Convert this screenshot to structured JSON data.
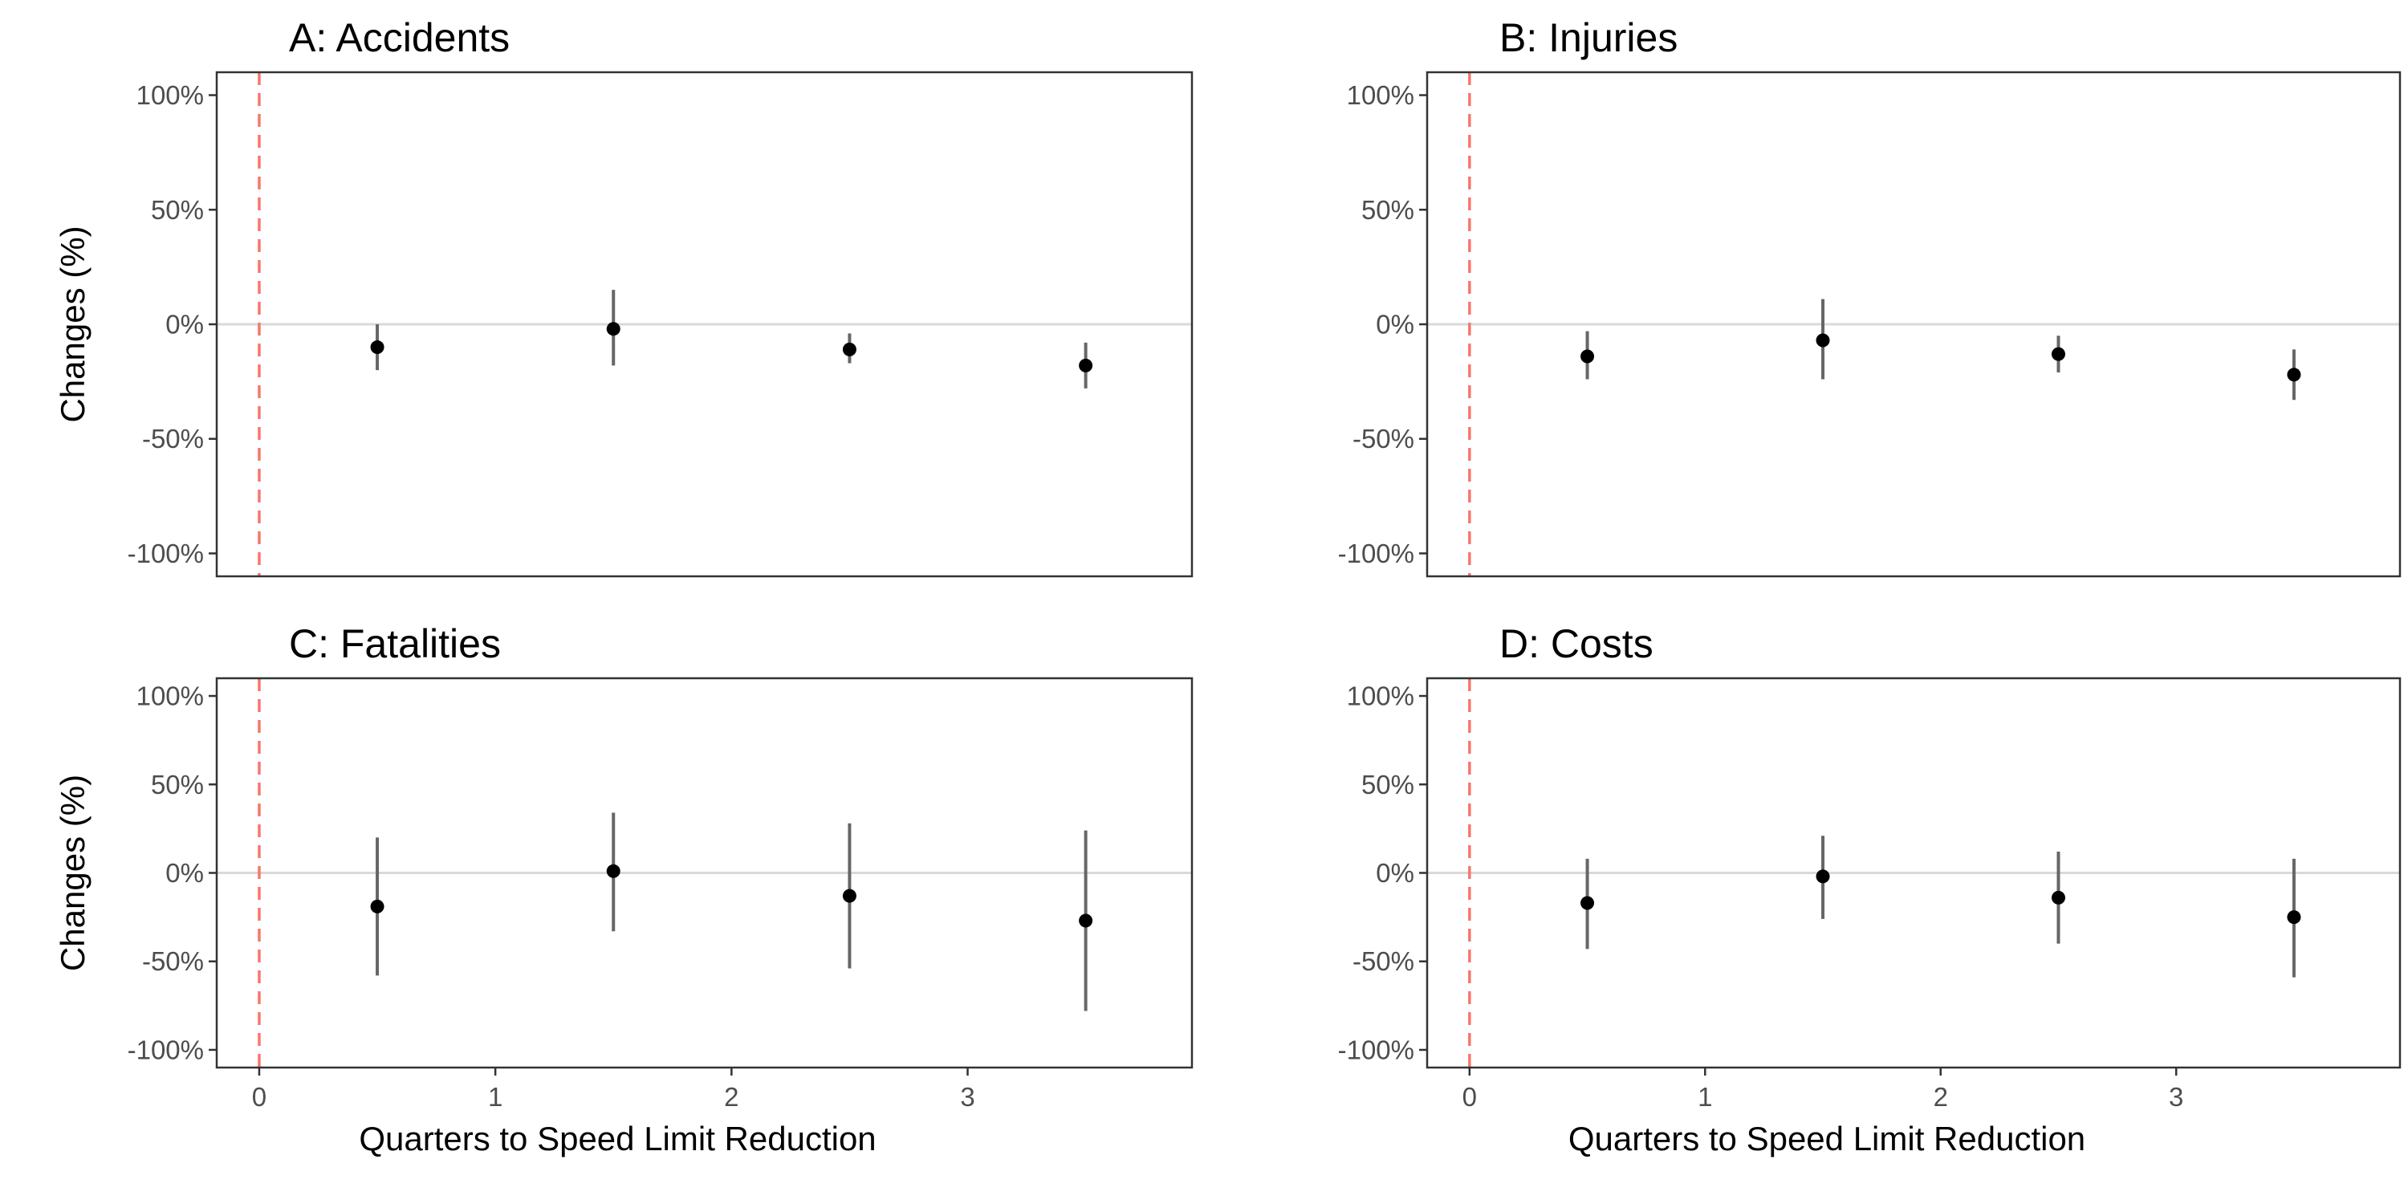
{
  "figure": {
    "shared_xlabel": "Quarters to Speed Limit Reduction",
    "shared_ylabel": "Changes (%)"
  },
  "chart_data": [
    {
      "type": "scatter",
      "title": "A: Accidents",
      "xlabel": "",
      "ylabel": "Changes (%)",
      "x": [
        0.5,
        1.5,
        2.5,
        3.5
      ],
      "y": [
        -10,
        -2,
        -11,
        -18
      ],
      "ci_low": [
        -20,
        -18,
        -17,
        -28
      ],
      "ci_high": [
        0,
        15,
        -4,
        -8
      ],
      "xlim": [
        -0.18,
        3.95
      ],
      "ylim": [
        -110,
        110
      ],
      "xticks": [],
      "yticks": [
        100,
        50,
        0,
        -50,
        -100
      ],
      "ytick_labels": [
        "100%",
        "50%",
        "0%",
        "-50%",
        "-100%"
      ],
      "reference_vline_x": 0,
      "reference_hline_y": 0,
      "grid": false
    },
    {
      "type": "scatter",
      "title": "B: Injuries",
      "xlabel": "",
      "ylabel": "",
      "x": [
        0.5,
        1.5,
        2.5,
        3.5
      ],
      "y": [
        -14,
        -7,
        -13,
        -22
      ],
      "ci_low": [
        -24,
        -24,
        -21,
        -33
      ],
      "ci_high": [
        -3,
        11,
        -5,
        -11
      ],
      "xlim": [
        -0.18,
        3.95
      ],
      "ylim": [
        -110,
        110
      ],
      "xticks": [],
      "yticks": [
        100,
        50,
        0,
        -50,
        -100
      ],
      "ytick_labels": [
        "100%",
        "50%",
        "0%",
        "-50%",
        "-100%"
      ],
      "reference_vline_x": 0,
      "reference_hline_y": 0,
      "grid": false
    },
    {
      "type": "scatter",
      "title": "C: Fatalities",
      "xlabel": "Quarters to Speed Limit Reduction",
      "ylabel": "Changes (%)",
      "x": [
        0.5,
        1.5,
        2.5,
        3.5
      ],
      "y": [
        -19,
        1,
        -13,
        -27
      ],
      "ci_low": [
        -58,
        -33,
        -54,
        -78
      ],
      "ci_high": [
        20,
        34,
        28,
        24
      ],
      "xlim": [
        -0.18,
        3.95
      ],
      "ylim": [
        -110,
        110
      ],
      "xticks": [
        0,
        1,
        2,
        3
      ],
      "xtick_labels": [
        "0",
        "1",
        "2",
        "3"
      ],
      "yticks": [
        100,
        50,
        0,
        -50,
        -100
      ],
      "ytick_labels": [
        "100%",
        "50%",
        "0%",
        "-50%",
        "-100%"
      ],
      "reference_vline_x": 0,
      "reference_hline_y": 0,
      "grid": false
    },
    {
      "type": "scatter",
      "title": "D: Costs",
      "xlabel": "Quarters to Speed Limit Reduction",
      "ylabel": "",
      "x": [
        0.5,
        1.5,
        2.5,
        3.5
      ],
      "y": [
        -17,
        -2,
        -14,
        -25
      ],
      "ci_low": [
        -43,
        -26,
        -40,
        -59
      ],
      "ci_high": [
        8,
        21,
        12,
        8
      ],
      "xlim": [
        -0.18,
        3.95
      ],
      "ylim": [
        -110,
        110
      ],
      "xticks": [
        0,
        1,
        2,
        3
      ],
      "xtick_labels": [
        "0",
        "1",
        "2",
        "3"
      ],
      "yticks": [
        100,
        50,
        0,
        -50,
        -100
      ],
      "ytick_labels": [
        "100%",
        "50%",
        "0%",
        "-50%",
        "-100%"
      ],
      "reference_vline_x": 0,
      "reference_hline_y": 0,
      "grid": false
    }
  ],
  "colors": {
    "point": "#000000",
    "error_bar": "#666666",
    "reference_vline": "#f8766d",
    "zero_line": "#d9d9d9",
    "panel_border": "#333333",
    "tick_label": "#4d4d4d"
  }
}
